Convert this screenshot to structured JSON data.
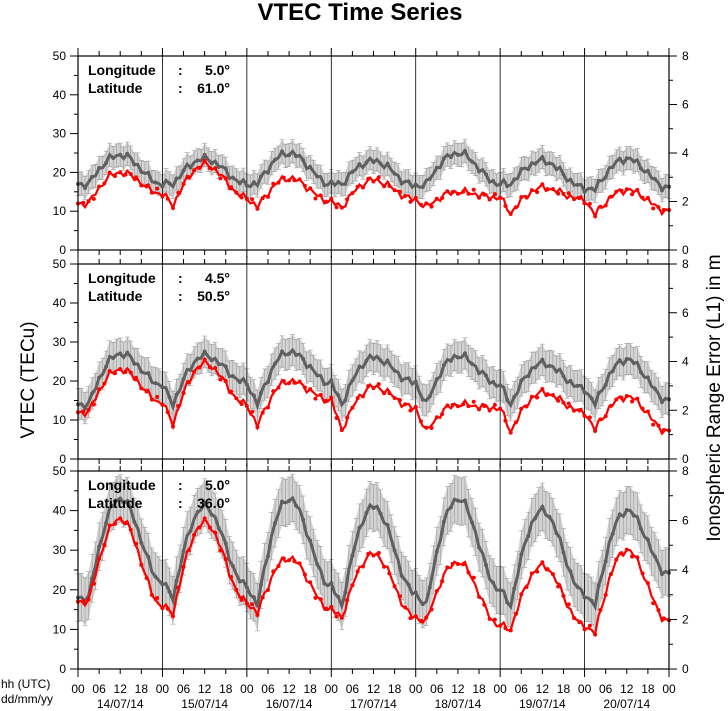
{
  "chart_data": {
    "type": "line",
    "title": "VTEC Time Series",
    "ylabel_left": "VTEC (TECu)",
    "ylabel_right": "Ionospheric Range Error (L1) in m",
    "x_axis_caption_line1": "hh (UTC)",
    "x_axis_caption_line2": "dd/mm/yy",
    "hour_ticks": [
      "00",
      "06",
      "12",
      "18"
    ],
    "day_labels": [
      "14/07/14",
      "15/07/14",
      "16/07/14",
      "17/07/14",
      "18/07/14",
      "19/07/14",
      "20/07/14"
    ],
    "last_tick": "00",
    "x_range_hours": [
      0,
      168
    ],
    "ylim_left": [
      0,
      50
    ],
    "ylim_right": [
      0,
      8
    ],
    "yticks_left": [
      "0",
      "10",
      "20",
      "30",
      "40",
      "50"
    ],
    "yticks_right": [
      "0",
      "2",
      "4",
      "6",
      "8"
    ],
    "colors": {
      "current": "#ff0000",
      "median": "#606060",
      "band": "#d3d3d3",
      "error_bar": "#999999"
    },
    "info_labels": {
      "lon": "Longitude",
      "lat": "Latitude",
      "sep": ":"
    },
    "panels": [
      {
        "longitude": "5.0°",
        "latitude": "61.0°",
        "median": [
          {
            "day": 0,
            "night": 17,
            "peak": 24.5,
            "trough": 17,
            "bump": 0
          },
          {
            "day": 1,
            "night": 17,
            "peak": 23.5,
            "trough": 17,
            "bump": 0
          },
          {
            "day": 2,
            "night": 17,
            "peak": 25,
            "trough": 17,
            "bump": 0
          },
          {
            "day": 3,
            "night": 17,
            "peak": 23,
            "trough": 16.5,
            "bump": 0
          },
          {
            "day": 4,
            "night": 17,
            "peak": 25,
            "trough": 17,
            "bump": 0
          },
          {
            "day": 5,
            "night": 17,
            "peak": 23,
            "trough": 16,
            "bump": 0
          },
          {
            "day": 6,
            "night": 15.5,
            "peak": 23.5,
            "trough": 16,
            "bump": 0
          }
        ],
        "current": [
          {
            "night": 12,
            "peak": 20,
            "trough": 14.5,
            "bump": 0
          },
          {
            "night": 11.5,
            "peak": 22,
            "trough": 13.5,
            "bump": 0
          },
          {
            "night": 11,
            "peak": 18.5,
            "trough": 12.5,
            "bump": 0
          },
          {
            "night": 11,
            "peak": 18,
            "trough": 13,
            "bump": 0
          },
          {
            "night": 11,
            "peak": 15,
            "trough": 13.5,
            "bump": 0
          },
          {
            "night": 9.5,
            "peak": 16,
            "trough": 13,
            "bump": 0
          },
          {
            "night": 9,
            "peak": 15.5,
            "trough": 10,
            "bump": 0
          }
        ],
        "band_width": 3
      },
      {
        "longitude": "4.5°",
        "latitude": "50.5°",
        "median": [
          {
            "night": 14,
            "peak": 27,
            "trough": 19,
            "bump": 0
          },
          {
            "night": 14,
            "peak": 26.5,
            "trough": 19.5,
            "bump": 0
          },
          {
            "night": 14,
            "peak": 27.5,
            "trough": 19.5,
            "bump": 0
          },
          {
            "night": 14,
            "peak": 26,
            "trough": 19.5,
            "bump": 0
          },
          {
            "night": 14,
            "peak": 26.5,
            "trough": 19,
            "bump": 0
          },
          {
            "night": 14,
            "peak": 24.5,
            "trough": 18,
            "bump": 0
          },
          {
            "night": 14,
            "peak": 25.5,
            "trough": 15,
            "bump": 0
          }
        ],
        "current": [
          {
            "night": 12,
            "peak": 23,
            "trough": 14.5,
            "bump": 0
          },
          {
            "night": 9,
            "peak": 24.5,
            "trough": 14,
            "bump": 0
          },
          {
            "night": 8.5,
            "peak": 20,
            "trough": 15,
            "bump": 0
          },
          {
            "night": 7.5,
            "peak": 18.5,
            "trough": 13,
            "bump": 0
          },
          {
            "night": 7,
            "peak": 14,
            "trough": 13,
            "bump": 0
          },
          {
            "night": 7,
            "peak": 17,
            "trough": 12,
            "bump": 0
          },
          {
            "night": 7.5,
            "peak": 16,
            "trough": 7
          }
        ],
        "band_width": 4
      },
      {
        "longitude": "5.0°",
        "latitude": "36.0°",
        "median": [
          {
            "night": 18,
            "peak": 43,
            "trough": 22,
            "bump": 0
          },
          {
            "night": 18,
            "peak": 41,
            "trough": 21,
            "bump": 0
          },
          {
            "night": 16,
            "peak": 43,
            "trough": 21,
            "bump": 0
          },
          {
            "night": 16,
            "peak": 41,
            "trough": 19,
            "bump": 0
          },
          {
            "night": 16,
            "peak": 43,
            "trough": 20,
            "bump": 0
          },
          {
            "night": 16,
            "peak": 40,
            "trough": 19,
            "bump": 0
          },
          {
            "night": 16,
            "peak": 40,
            "trough": 24,
            "bump": 0
          }
        ],
        "current": [
          {
            "night": 17,
            "peak": 38,
            "trough": 16,
            "bump": 0
          },
          {
            "night": 14,
            "peak": 37,
            "trough": 17,
            "bump": 0
          },
          {
            "night": 14,
            "peak": 28,
            "trough": 15,
            "bump": 0
          },
          {
            "night": 13,
            "peak": 29,
            "trough": 13,
            "bump": 0
          },
          {
            "night": 12,
            "peak": 27,
            "trough": 11,
            "bump": 0
          },
          {
            "night": 10,
            "peak": 26,
            "trough": 11,
            "bump": 0
          },
          {
            "night": 9,
            "peak": 30,
            "trough": 12,
            "bump": 0
          }
        ],
        "band_width": 6
      }
    ]
  }
}
